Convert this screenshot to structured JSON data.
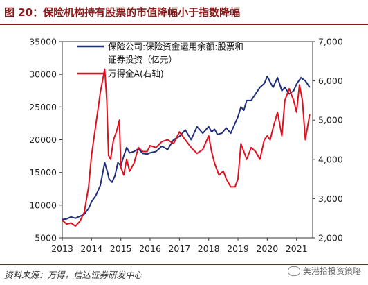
{
  "figure": {
    "title": "图 20：保险机构持有股票的市值降幅小于指数降幅",
    "source": "资料来源：万得，信达证券研发中心",
    "watermark": "美港拾投资策略"
  },
  "chart_data": {
    "type": "line",
    "colors": {
      "left_series": "#1f2e7a",
      "right_series": "#e0101f"
    },
    "x_ticks": [
      "2013",
      "2014",
      "2015",
      "2016",
      "2017",
      "2018",
      "2019",
      "2020",
      "2021"
    ],
    "x_range": [
      2013.0,
      2021.55
    ],
    "y_left": {
      "ticks": [
        "5000",
        "10000",
        "15000",
        "20000",
        "25000",
        "30000",
        "35000"
      ],
      "range": [
        5000,
        35000
      ]
    },
    "y_right": {
      "ticks": [
        "2,000",
        "3,000",
        "4,000",
        "5,000",
        "6,000",
        "7,000"
      ],
      "range": [
        2000,
        7000
      ]
    },
    "legend": {
      "placement": "top-right-inside"
    },
    "series": [
      {
        "name": "保险公司:保险资金运用余额:股票和证券投资（亿元）",
        "axis": "left",
        "x": [
          2013.0,
          2013.15,
          2013.3,
          2013.45,
          2013.6,
          2013.75,
          2013.9,
          2014.0,
          2014.15,
          2014.3,
          2014.45,
          2014.55,
          2014.6,
          2014.7,
          2014.8,
          2014.9,
          2015.0,
          2015.1,
          2015.2,
          2015.3,
          2015.45,
          2015.6,
          2015.75,
          2015.9,
          2016.0,
          2016.2,
          2016.4,
          2016.6,
          2016.8,
          2017.0,
          2017.2,
          2017.4,
          2017.6,
          2017.8,
          2018.0,
          2018.1,
          2018.2,
          2018.3,
          2018.45,
          2018.6,
          2018.75,
          2018.9,
          2019.0,
          2019.1,
          2019.2,
          2019.3,
          2019.45,
          2019.6,
          2019.75,
          2019.9,
          2020.0,
          2020.1,
          2020.2,
          2020.35,
          2020.5,
          2020.6,
          2020.75,
          2020.9,
          2021.0,
          2021.15,
          2021.3,
          2021.45
        ],
        "values": [
          7800,
          7900,
          8200,
          8000,
          8300,
          8600,
          9500,
          10500,
          11500,
          13000,
          16500,
          15000,
          14000,
          13500,
          14500,
          16500,
          16000,
          17500,
          18800,
          18000,
          18200,
          18600,
          17900,
          17800,
          18000,
          18200,
          19000,
          18500,
          20000,
          20500,
          21500,
          20000,
          22000,
          21000,
          22000,
          21200,
          21600,
          20800,
          21000,
          21800,
          21000,
          22500,
          23500,
          25000,
          24500,
          26000,
          26000,
          27000,
          28000,
          28600,
          29700,
          28800,
          28000,
          29500,
          27500,
          28000,
          27000,
          27500,
          28500,
          29500,
          29000,
          28000
        ]
      },
      {
        "name": "万得全A(右轴)",
        "axis": "right",
        "x": [
          2013.0,
          2013.15,
          2013.3,
          2013.45,
          2013.6,
          2013.75,
          2013.9,
          2014.0,
          2014.15,
          2014.3,
          2014.45,
          2014.52,
          2014.58,
          2014.65,
          2014.75,
          2014.85,
          2014.95,
          2015.0,
          2015.1,
          2015.2,
          2015.3,
          2015.45,
          2015.6,
          2015.75,
          2015.9,
          2016.0,
          2016.2,
          2016.4,
          2016.6,
          2016.8,
          2017.0,
          2017.2,
          2017.4,
          2017.6,
          2017.8,
          2018.0,
          2018.1,
          2018.2,
          2018.35,
          2018.5,
          2018.6,
          2018.75,
          2018.9,
          2019.0,
          2019.1,
          2019.2,
          2019.3,
          2019.45,
          2019.6,
          2019.75,
          2019.9,
          2020.0,
          2020.1,
          2020.2,
          2020.35,
          2020.5,
          2020.6,
          2020.75,
          2020.9,
          2021.0,
          2021.1,
          2021.2,
          2021.3,
          2021.45
        ],
        "values": [
          2450,
          2350,
          2380,
          2300,
          2420,
          2650,
          3300,
          4100,
          4900,
          5700,
          6300,
          5500,
          4100,
          4000,
          4500,
          4700,
          5000,
          3800,
          3600,
          4000,
          3700,
          3900,
          4300,
          4200,
          4200,
          4350,
          4300,
          4450,
          4500,
          4400,
          4700,
          4500,
          4300,
          4150,
          4250,
          4600,
          4200,
          3900,
          3600,
          3700,
          3500,
          3300,
          3300,
          3500,
          4400,
          4200,
          4000,
          4300,
          4200,
          4000,
          4500,
          4600,
          4500,
          4800,
          5200,
          4600,
          5500,
          5800,
          5500,
          5200,
          5900,
          5500,
          4500,
          5150
        ]
      }
    ]
  }
}
